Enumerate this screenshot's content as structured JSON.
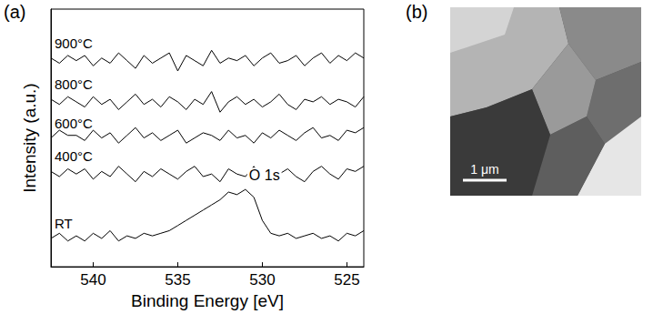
{
  "chart_data": {
    "type": "line",
    "xlabel": "Binding Energy [eV]",
    "ylabel": "Intensity (a.u.)",
    "x": [
      542.5,
      542,
      541.5,
      541,
      540.5,
      540,
      539.5,
      539,
      538.5,
      538,
      537.5,
      537,
      536.5,
      536,
      535.5,
      535,
      534.5,
      534,
      533.5,
      533,
      532.5,
      532,
      531.5,
      531,
      530.5,
      530,
      529.5,
      529,
      528.5,
      528,
      527.5,
      527,
      526.5,
      526,
      525.5,
      525,
      524.5,
      524
    ],
    "series": [
      {
        "name": "RT",
        "color": "#000000",
        "values": [
          1.1,
          1.3,
          1.0,
          1.2,
          1.0,
          1.3,
          1.1,
          1.4,
          1.0,
          1.2,
          1.1,
          1.3,
          1.2,
          1.3,
          1.4,
          1.6,
          1.8,
          2.0,
          2.2,
          2.4,
          2.6,
          2.9,
          2.8,
          3.0,
          2.7,
          1.8,
          1.3,
          1.2,
          1.3,
          1.1,
          1.2,
          1.3,
          1.1,
          1.2,
          1.0,
          1.3,
          1.2,
          1.4
        ]
      },
      {
        "name": "400°C",
        "color": "#000000",
        "values": [
          3.7,
          3.5,
          3.8,
          3.6,
          3.8,
          3.4,
          3.7,
          3.5,
          3.9,
          3.6,
          3.3,
          3.7,
          3.5,
          3.8,
          3.6,
          3.4,
          3.7,
          3.9,
          3.5,
          3.6,
          3.3,
          3.8,
          3.6,
          3.5,
          3.9,
          3.4,
          3.7,
          3.6,
          3.8,
          3.5,
          3.3,
          3.7,
          3.9,
          3.6,
          3.4,
          3.8,
          3.7,
          3.9
        ]
      },
      {
        "name": "600°C",
        "color": "#000000",
        "values": [
          5.0,
          5.3,
          5.1,
          5.1,
          4.9,
          5.3,
          5.0,
          5.2,
          4.8,
          5.1,
          5.4,
          5.0,
          5.2,
          4.9,
          5.1,
          5.3,
          4.8,
          5.0,
          5.2,
          5.1,
          4.9,
          5.3,
          5.0,
          5.1,
          4.8,
          5.2,
          5.0,
          5.3,
          5.1,
          4.9,
          5.2,
          5.4,
          5.0,
          5.1,
          4.9,
          5.3,
          5.2,
          5.4
        ]
      },
      {
        "name": "800°C",
        "color": "#000000",
        "values": [
          6.5,
          6.3,
          6.6,
          6.4,
          6.2,
          6.6,
          6.3,
          6.5,
          6.1,
          6.4,
          6.7,
          6.3,
          6.5,
          6.2,
          6.6,
          6.4,
          6.1,
          6.5,
          6.3,
          6.8,
          6.0,
          6.4,
          6.6,
          6.3,
          6.5,
          6.2,
          6.4,
          6.7,
          6.3,
          6.1,
          6.5,
          6.4,
          6.6,
          6.3,
          6.5,
          6.4,
          6.2,
          6.6
        ]
      },
      {
        "name": "900°C",
        "color": "#000000",
        "values": [
          8.1,
          7.9,
          8.2,
          8.0,
          8.2,
          7.8,
          8.1,
          7.9,
          8.3,
          8.0,
          7.7,
          8.2,
          7.9,
          8.1,
          8.3,
          7.6,
          8.2,
          8.0,
          7.8,
          8.4,
          7.9,
          8.1,
          8.0,
          8.2,
          7.8,
          8.1,
          8.3,
          7.9,
          8.0,
          8.2,
          7.8,
          8.1,
          8.3,
          7.9,
          8.2,
          8.0,
          8.3,
          8.1
        ]
      }
    ],
    "xlim": [
      542.5,
      524
    ],
    "xticks": [
      540,
      535,
      530,
      525
    ],
    "ylim": [
      0,
      10
    ],
    "tick_labels": "x",
    "grid": false,
    "line_style": "solid",
    "annotations": [
      {
        "text": "O 1s",
        "series": "RT"
      }
    ]
  },
  "panel_labels": [
    "(a)",
    "(b)"
  ],
  "image": {
    "scale_bar_label": "1 μm"
  }
}
